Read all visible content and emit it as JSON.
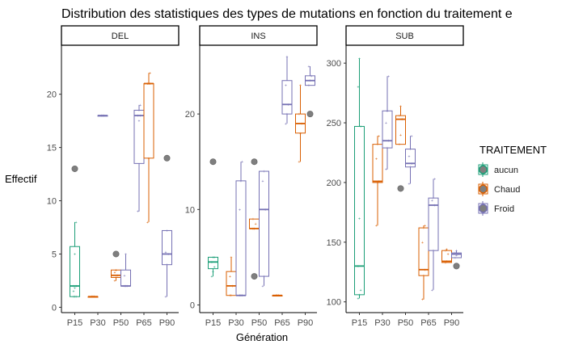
{
  "title": "Distribution des statistiques des types de mutations en fonction du traitement e",
  "xlabel": "Génération",
  "ylabel": "Effectif",
  "legend": {
    "title": "TRAITEMENT",
    "position": "right",
    "items": [
      {
        "key": "aucun",
        "label": "aucun",
        "color": "#1B9E77"
      },
      {
        "key": "Chaud",
        "label": "Chaud",
        "color": "#D95F02"
      },
      {
        "key": "Froid",
        "label": "Froid",
        "color": "#7570B3"
      }
    ]
  },
  "chart_data": {
    "type": "boxplot",
    "grid": false,
    "categories": [
      "P15",
      "P30",
      "P50",
      "P65",
      "P90"
    ],
    "panels": [
      {
        "label": "DEL",
        "ylim": [
          -0.5,
          24.6
        ],
        "yticks": [
          0,
          5,
          10,
          15,
          20
        ],
        "boxes": [
          {
            "x": "P15",
            "group": "aucun",
            "min": 1,
            "q1": 1,
            "median": 2,
            "q3": 5.7,
            "max": 8,
            "outliers": [
              13
            ],
            "points": [
              1,
              1,
              1,
              1.5,
              1.8,
              2,
              2,
              5,
              8
            ]
          },
          {
            "x": "P30",
            "group": "Chaud",
            "min": 1,
            "q1": 1,
            "median": 1,
            "q3": 1,
            "max": 1,
            "outliers": [],
            "points": [
              1,
              1,
              1
            ]
          },
          {
            "x": "P30",
            "group": "Froid",
            "min": 18,
            "q1": 18,
            "median": 18,
            "q3": 18,
            "max": 18,
            "outliers": [],
            "points": [
              18,
              18,
              18
            ]
          },
          {
            "x": "P50",
            "group": "Chaud",
            "min": 2.5,
            "q1": 2.8,
            "median": 3,
            "q3": 3.5,
            "max": 3.5,
            "outliers": [
              5
            ],
            "points": [
              2.5,
              2.8,
              3,
              3.3,
              3.5
            ]
          },
          {
            "x": "P50",
            "group": "Froid",
            "min": 2,
            "q1": 2,
            "median": 2,
            "q3": 3.5,
            "max": 5,
            "outliers": [],
            "points": [
              2,
              2,
              2,
              3,
              5
            ]
          },
          {
            "x": "P65",
            "group": "Froid",
            "min": 9,
            "q1": 13.5,
            "median": 18,
            "q3": 18.5,
            "max": 19,
            "outliers": [],
            "points": [
              9,
              17.5,
              18,
              18,
              18.5,
              19
            ]
          },
          {
            "x": "P65",
            "group": "Chaud",
            "min": 8,
            "q1": 14,
            "median": 21,
            "q3": 21,
            "max": 22,
            "outliers": [],
            "points": [
              8,
              14,
              21,
              21,
              21,
              22
            ]
          },
          {
            "x": "P90",
            "group": "Froid",
            "min": 1,
            "q1": 4,
            "median": 5,
            "q3": 7.2,
            "max": 7.2,
            "outliers": [
              14
            ],
            "points": [
              1,
              4,
              5,
              5.2,
              7.2
            ]
          }
        ]
      },
      {
        "label": "INS",
        "ylim": [
          -0.8,
          27.2
        ],
        "yticks": [
          0,
          10,
          20
        ],
        "boxes": [
          {
            "x": "P15",
            "group": "aucun",
            "min": 3,
            "q1": 3.8,
            "median": 4.5,
            "q3": 5,
            "max": 5,
            "outliers": [
              15
            ],
            "points": [
              3,
              3.5,
              4,
              4.5,
              5,
              5
            ]
          },
          {
            "x": "P30",
            "group": "Chaud",
            "min": 1,
            "q1": 1,
            "median": 2,
            "q3": 3.5,
            "max": 5,
            "outliers": [],
            "points": [
              1,
              1,
              2,
              3,
              5
            ]
          },
          {
            "x": "P30",
            "group": "Froid",
            "min": 1,
            "q1": 1,
            "median": 1,
            "q3": 13,
            "max": 15,
            "outliers": [],
            "points": [
              1,
              1,
              1,
              10,
              13,
              15
            ]
          },
          {
            "x": "P50",
            "group": "Chaud",
            "min": 8,
            "q1": 8,
            "median": 8,
            "q3": 9,
            "max": 9,
            "outliers": [
              15,
              3
            ],
            "points": [
              8,
              8,
              8.5,
              9
            ]
          },
          {
            "x": "P50",
            "group": "Froid",
            "min": 2,
            "q1": 3,
            "median": 10,
            "q3": 14,
            "max": 14,
            "outliers": [],
            "points": [
              2,
              3,
              10,
              13,
              14
            ]
          },
          {
            "x": "P65",
            "group": "Chaud",
            "min": 1,
            "q1": 1,
            "median": 1,
            "q3": 1,
            "max": 1,
            "outliers": [],
            "points": [
              1,
              1,
              1
            ]
          },
          {
            "x": "P65",
            "group": "Froid",
            "min": 19,
            "q1": 20,
            "median": 21,
            "q3": 23.5,
            "max": 26,
            "outliers": [],
            "points": [
              19,
              20,
              21,
              23,
              26
            ]
          },
          {
            "x": "P90",
            "group": "Chaud",
            "min": 15,
            "q1": 18,
            "median": 19,
            "q3": 20,
            "max": 23,
            "outliers": [],
            "points": [
              15,
              18,
              19,
              20,
              23
            ]
          },
          {
            "x": "P90",
            "group": "Froid",
            "min": 23,
            "q1": 23,
            "median": 23.5,
            "q3": 24,
            "max": 25,
            "outliers": [
              20
            ],
            "points": [
              23,
              23.5,
              24,
              25
            ]
          }
        ]
      },
      {
        "label": "SUB",
        "ylim": [
          91,
          315
        ],
        "yticks": [
          100,
          150,
          200,
          250,
          300
        ],
        "boxes": [
          {
            "x": "P15",
            "group": "aucun",
            "min": 103,
            "q1": 106,
            "median": 130,
            "q3": 247,
            "max": 304,
            "outliers": [],
            "points": [
              103,
              106,
              110,
              130,
              170,
              247,
              280,
              304
            ]
          },
          {
            "x": "P30",
            "group": "Chaud",
            "min": 164,
            "q1": 200,
            "median": 201,
            "q3": 232,
            "max": 239,
            "outliers": [],
            "points": [
              164,
              200,
              201,
              220,
              232,
              239
            ]
          },
          {
            "x": "P30",
            "group": "Froid",
            "min": 211,
            "q1": 229,
            "median": 235,
            "q3": 260,
            "max": 289,
            "outliers": [],
            "points": [
              211,
              229,
              235,
              250,
              260,
              289
            ]
          },
          {
            "x": "P50",
            "group": "Chaud",
            "min": 232,
            "q1": 232,
            "median": 253,
            "q3": 256,
            "max": 264,
            "outliers": [
              195
            ],
            "points": [
              232,
              240,
              253,
              256,
              264
            ]
          },
          {
            "x": "P50",
            "group": "Froid",
            "min": 199,
            "q1": 213,
            "median": 216,
            "q3": 228,
            "max": 239,
            "outliers": [],
            "points": [
              199,
              213,
              216,
              222,
              228,
              239
            ]
          },
          {
            "x": "P65",
            "group": "Chaud",
            "min": 102,
            "q1": 122,
            "median": 127,
            "q3": 162,
            "max": 164,
            "outliers": [],
            "points": [
              102,
              122,
              127,
              150,
              162,
              164
            ]
          },
          {
            "x": "P65",
            "group": "Froid",
            "min": 110,
            "q1": 143,
            "median": 181,
            "q3": 187,
            "max": 203,
            "outliers": [],
            "points": [
              110,
              143,
              181,
              185,
              187,
              203
            ]
          },
          {
            "x": "P90",
            "group": "Chaud",
            "min": 133,
            "q1": 133,
            "median": 134,
            "q3": 143,
            "max": 144,
            "outliers": [],
            "points": [
              133,
              134,
              140,
              143,
              144
            ]
          },
          {
            "x": "P90",
            "group": "Froid",
            "min": 137,
            "q1": 137,
            "median": 140,
            "q3": 141,
            "max": 143,
            "outliers": [
              130
            ],
            "points": [
              137,
              139,
              140,
              141,
              143
            ]
          }
        ]
      }
    ]
  }
}
